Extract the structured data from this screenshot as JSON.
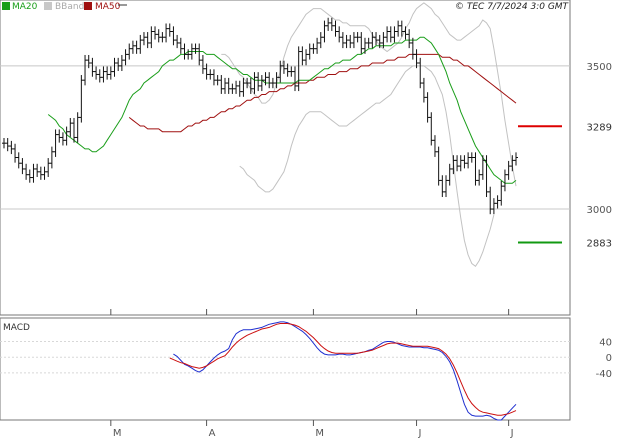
{
  "chart_data": [
    {
      "type": "candlestick",
      "panel": "price",
      "credit": "© TEC 7/7/2024 3:0 GMT",
      "legend": [
        {
          "label": "MA20",
          "color": "#1a9e1a"
        },
        {
          "label": "BBands",
          "color": "#b4b4b4"
        },
        {
          "label": "MA50",
          "color": "#a01010"
        }
      ],
      "yticks": [
        {
          "value": 3500,
          "label": "3500"
        },
        {
          "value": 3000,
          "label": "3000"
        }
      ],
      "ylim": [
        2630,
        3730
      ],
      "xticks": [
        {
          "index": 29,
          "label": "M"
        },
        {
          "index": 55,
          "label": "A"
        },
        {
          "index": 84,
          "label": "M"
        },
        {
          "index": 112,
          "label": "J"
        },
        {
          "index": 137,
          "label": "J"
        }
      ],
      "target_lines": [
        {
          "name": "resistance",
          "value": 3289,
          "label": "3289",
          "color": "#dd0000"
        },
        {
          "name": "support",
          "value": 2883,
          "label": "2883",
          "color": "#119911"
        }
      ],
      "close": [
        3230,
        3220,
        3210,
        3180,
        3160,
        3140,
        3120,
        3110,
        3140,
        3130,
        3120,
        3130,
        3160,
        3200,
        3260,
        3250,
        3240,
        3270,
        3300,
        3250,
        3320,
        3450,
        3520,
        3510,
        3480,
        3470,
        3460,
        3480,
        3470,
        3480,
        3510,
        3500,
        3520,
        3540,
        3560,
        3570,
        3560,
        3590,
        3600,
        3580,
        3620,
        3610,
        3600,
        3600,
        3630,
        3620,
        3590,
        3580,
        3560,
        3540,
        3540,
        3560,
        3560,
        3520,
        3490,
        3470,
        3470,
        3450,
        3450,
        3420,
        3440,
        3420,
        3420,
        3430,
        3410,
        3440,
        3440,
        3420,
        3460,
        3430,
        3450,
        3460,
        3440,
        3440,
        3460,
        3500,
        3490,
        3480,
        3480,
        3430,
        3550,
        3520,
        3540,
        3560,
        3560,
        3580,
        3600,
        3640,
        3650,
        3640,
        3620,
        3600,
        3580,
        3590,
        3580,
        3600,
        3600,
        3560,
        3580,
        3580,
        3600,
        3590,
        3580,
        3600,
        3620,
        3600,
        3620,
        3640,
        3620,
        3610,
        3580,
        3540,
        3510,
        3440,
        3390,
        3320,
        3240,
        3200,
        3100,
        3060,
        3100,
        3140,
        3170,
        3150,
        3170,
        3160,
        3180,
        3180,
        3100,
        3120,
        3170,
        3060,
        3000,
        3020,
        3030,
        3080,
        3120,
        3150,
        3170,
        3180
      ],
      "ma20": [
        3330,
        3320,
        3310,
        3290,
        3280,
        3260,
        3250,
        3240,
        3230,
        3220,
        3210,
        3210,
        3200,
        3200,
        3210,
        3220,
        3240,
        3260,
        3280,
        3300,
        3320,
        3350,
        3380,
        3400,
        3410,
        3420,
        3440,
        3450,
        3460,
        3470,
        3480,
        3500,
        3510,
        3520,
        3520,
        3530,
        3540,
        3540,
        3550,
        3550,
        3550,
        3550,
        3550,
        3540,
        3540,
        3540,
        3530,
        3520,
        3510,
        3500,
        3490,
        3490,
        3480,
        3470,
        3470,
        3460,
        3450,
        3450,
        3450,
        3440,
        3440,
        3440,
        3440,
        3440,
        3440,
        3440,
        3440,
        3440,
        3450,
        3450,
        3450,
        3450,
        3460,
        3470,
        3480,
        3490,
        3490,
        3500,
        3510,
        3510,
        3520,
        3520,
        3520,
        3530,
        3540,
        3540,
        3550,
        3560,
        3560,
        3570,
        3570,
        3570,
        3570,
        3570,
        3580,
        3580,
        3580,
        3590,
        3590,
        3590,
        3590,
        3600,
        3600,
        3590,
        3580,
        3560,
        3540,
        3510,
        3480,
        3440,
        3410,
        3380,
        3340,
        3310,
        3280,
        3250,
        3220,
        3200,
        3180,
        3160,
        3140,
        3120,
        3110,
        3100,
        3090,
        3090,
        3090,
        3100
      ],
      "ma50": [
        3320,
        3310,
        3300,
        3290,
        3290,
        3280,
        3280,
        3280,
        3280,
        3270,
        3270,
        3270,
        3270,
        3270,
        3270,
        3280,
        3290,
        3290,
        3300,
        3300,
        3310,
        3310,
        3320,
        3320,
        3330,
        3340,
        3340,
        3350,
        3350,
        3360,
        3360,
        3370,
        3380,
        3380,
        3390,
        3390,
        3400,
        3400,
        3410,
        3410,
        3410,
        3420,
        3420,
        3430,
        3430,
        3440,
        3440,
        3440,
        3440,
        3450,
        3450,
        3460,
        3460,
        3460,
        3470,
        3470,
        3470,
        3480,
        3480,
        3480,
        3490,
        3490,
        3490,
        3500,
        3500,
        3500,
        3510,
        3510,
        3510,
        3510,
        3520,
        3520,
        3520,
        3530,
        3530,
        3530,
        3540,
        3540,
        3540,
        3540,
        3540,
        3540,
        3540,
        3540,
        3540,
        3530,
        3530,
        3530,
        3520,
        3520,
        3510,
        3500,
        3500,
        3490,
        3480,
        3470,
        3460,
        3450,
        3440,
        3430,
        3420,
        3410,
        3400,
        3390,
        3380,
        3370
      ],
      "bb_upper": [
        3540,
        3540,
        3530,
        3510,
        3490,
        3470,
        3460,
        3440,
        3420,
        3400,
        3390,
        3370,
        3370,
        3380,
        3400,
        3440,
        3480,
        3530,
        3570,
        3600,
        3620,
        3640,
        3660,
        3680,
        3690,
        3700,
        3700,
        3700,
        3690,
        3680,
        3670,
        3660,
        3660,
        3650,
        3650,
        3640,
        3640,
        3640,
        3640,
        3640,
        3630,
        3610,
        3590,
        3570,
        3560,
        3550,
        3560,
        3570,
        3580,
        3600,
        3630,
        3650,
        3680,
        3700,
        3710,
        3720,
        3710,
        3700,
        3680,
        3670,
        3650,
        3630,
        3610,
        3600,
        3590,
        3590,
        3600,
        3610,
        3620,
        3630,
        3640,
        3660,
        3650,
        3630,
        3560,
        3480,
        3400,
        3310,
        3230,
        3150,
        3080
      ],
      "bb_lower": [
        3150,
        3140,
        3120,
        3110,
        3100,
        3080,
        3070,
        3060,
        3060,
        3070,
        3090,
        3110,
        3130,
        3170,
        3220,
        3260,
        3290,
        3310,
        3330,
        3340,
        3340,
        3340,
        3340,
        3330,
        3320,
        3310,
        3300,
        3290,
        3290,
        3290,
        3300,
        3310,
        3320,
        3330,
        3340,
        3350,
        3360,
        3370,
        3370,
        3380,
        3390,
        3400,
        3420,
        3440,
        3460,
        3480,
        3490,
        3500,
        3500,
        3500,
        3500,
        3490,
        3480,
        3460,
        3430,
        3400,
        3340,
        3260,
        3160,
        3060,
        2970,
        2890,
        2840,
        2810,
        2800,
        2820,
        2850,
        2890,
        2930,
        2980
      ]
    },
    {
      "type": "line",
      "panel": "indicator",
      "title": "MACD",
      "yticks": [
        {
          "value": 40,
          "label": "40"
        },
        {
          "value": 0,
          "label": "0"
        },
        {
          "value": -40,
          "label": "-40"
        }
      ],
      "ylim": [
        -160,
        100
      ],
      "series": [
        {
          "values": [
            8,
            2,
            -8,
            -18,
            -22,
            -28,
            -34,
            -38,
            -32,
            -22,
            -12,
            -2,
            6,
            12,
            16,
            22,
            45,
            60,
            66,
            70,
            70,
            70,
            72,
            74,
            76,
            80,
            84,
            86,
            88,
            90,
            90,
            88,
            84,
            78,
            72,
            66,
            58,
            48,
            36,
            24,
            14,
            8,
            6,
            6,
            6,
            8,
            8,
            6,
            6,
            8,
            10,
            12,
            14,
            18,
            20,
            26,
            32,
            38,
            40,
            40,
            38,
            34,
            30,
            28,
            26,
            26,
            26,
            26,
            24,
            24,
            22,
            20,
            18,
            12,
            2,
            -12,
            -32,
            -60,
            -90,
            -120,
            -140,
            -148,
            -150,
            -150,
            -150,
            -148,
            -150,
            -156,
            -160,
            -160,
            -150,
            -140,
            -130,
            -120
          ],
          "color": "#1f2fd0"
        },
        {
          "values": [
            -2,
            -6,
            -10,
            -14,
            -16,
            -20,
            -24,
            -26,
            -28,
            -26,
            -22,
            -16,
            -10,
            -4,
            0,
            4,
            14,
            26,
            36,
            44,
            50,
            56,
            60,
            64,
            68,
            72,
            74,
            76,
            80,
            84,
            86,
            86,
            86,
            84,
            82,
            78,
            72,
            66,
            58,
            50,
            40,
            30,
            22,
            16,
            12,
            10,
            10,
            10,
            10,
            10,
            10,
            10,
            12,
            14,
            16,
            18,
            22,
            26,
            30,
            34,
            36,
            36,
            36,
            34,
            32,
            30,
            28,
            28,
            28,
            28,
            28,
            26,
            24,
            22,
            16,
            8,
            -4,
            -20,
            -40,
            -62,
            -84,
            -104,
            -118,
            -128,
            -136,
            -140,
            -142,
            -144,
            -146,
            -148,
            -148,
            -146,
            -144,
            -140,
            -136
          ],
          "color": "#cc1010"
        }
      ],
      "xticks": [
        {
          "index": 29,
          "label": "M"
        },
        {
          "index": 55,
          "label": "A"
        },
        {
          "index": 84,
          "label": "M"
        },
        {
          "index": 112,
          "label": "J"
        },
        {
          "index": 137,
          "label": "J"
        }
      ]
    }
  ]
}
